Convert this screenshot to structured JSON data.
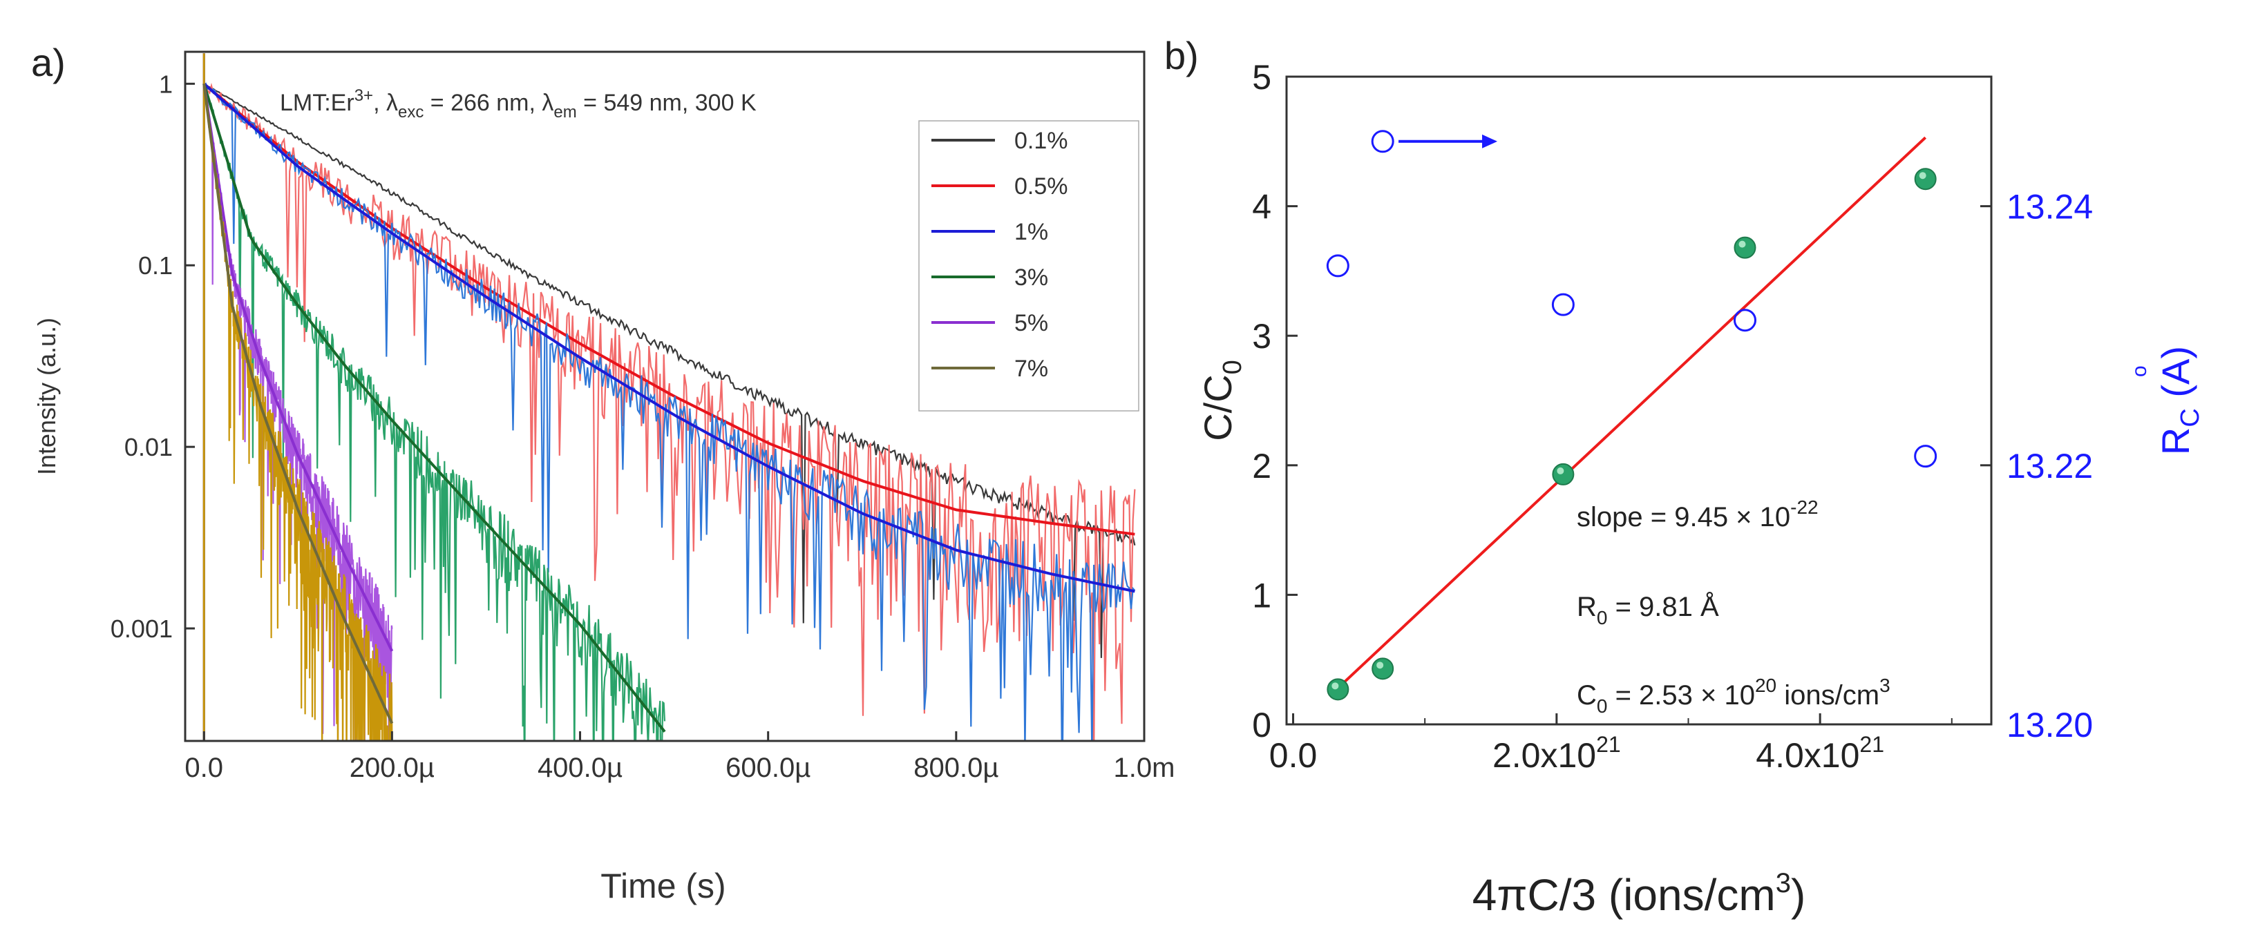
{
  "chart_data": [
    {
      "panel": "a)",
      "type": "line",
      "yscale": "log",
      "title": "LMT:Er3+, λexc = 266 nm, λem = 549 nm, 300 K",
      "title_parts": {
        "host": "LMT:Er",
        "ion_sup": "3+",
        "exc_label": ", λ",
        "exc_sub": "exc",
        "exc_value": " = 266 nm, λ",
        "em_sub": "em",
        "em_value": " = 549 nm, 300 K"
      },
      "xlabel": "Time (s)",
      "ylabel": "Intensity (a.u.)",
      "xlim": [
        -2e-05,
        0.001
      ],
      "ylim": [
        0.00024,
        1.5
      ],
      "x_ticks": [
        {
          "value": 0,
          "label": "0.0"
        },
        {
          "value": 0.0002,
          "label": "200.0µ"
        },
        {
          "value": 0.0004,
          "label": "400.0µ"
        },
        {
          "value": 0.0006,
          "label": "600.0µ"
        },
        {
          "value": 0.0008,
          "label": "800.0µ"
        },
        {
          "value": 0.001,
          "label": "1.0m"
        }
      ],
      "y_ticks": [
        {
          "value": 1,
          "label": "1"
        },
        {
          "value": 0.1,
          "label": "0.1"
        },
        {
          "value": 0.01,
          "label": "0.01"
        },
        {
          "value": 0.001,
          "label": "0.001"
        }
      ],
      "legend_position": "top-right",
      "series": [
        {
          "name": "0.1%",
          "color": "#3a3a3a",
          "fit_color": null,
          "noise": 0.06,
          "start_noise_decays": 0,
          "x": [
            0,
            0.0001,
            0.0002,
            0.0003,
            0.0004,
            0.0005,
            0.0006,
            0.0007,
            0.0008,
            0.0009,
            0.00099
          ],
          "y": [
            1,
            0.5,
            0.25,
            0.12,
            0.062,
            0.033,
            0.018,
            0.0105,
            0.0065,
            0.0042,
            0.003
          ]
        },
        {
          "name": "0.5%",
          "color": "#f26b6b",
          "fit_color": "#e8141c",
          "noise": 0.6,
          "start_noise_decays": 1.0,
          "x": [
            0,
            0.0001,
            0.0002,
            0.0003,
            0.0004,
            0.0005,
            0.0006,
            0.0007,
            0.0008,
            0.0009,
            0.00099
          ],
          "y": [
            1,
            0.37,
            0.16,
            0.075,
            0.037,
            0.019,
            0.0105,
            0.0065,
            0.0045,
            0.0038,
            0.0033
          ]
        },
        {
          "name": "1%",
          "color": "#2f78d8",
          "fit_color": "#1c1cd6",
          "noise": 0.3,
          "start_noise_decays": 1.0,
          "x": [
            0,
            0.0001,
            0.0002,
            0.0003,
            0.0004,
            0.0005,
            0.0006,
            0.0007,
            0.0008,
            0.0009,
            0.00099
          ],
          "y": [
            1,
            0.35,
            0.15,
            0.067,
            0.031,
            0.015,
            0.0078,
            0.0043,
            0.0027,
            0.002,
            0.0016
          ]
        },
        {
          "name": "3%",
          "color": "#2aa36a",
          "fit_color": "#186b2c",
          "noise": 0.35,
          "start_noise_decays": 2.5,
          "x": [
            0,
            5e-05,
            0.0001,
            0.00015,
            0.0002,
            0.0003,
            0.0004,
            0.00049
          ],
          "y": [
            1,
            0.14,
            0.06,
            0.028,
            0.014,
            0.0038,
            0.00105,
            0.00027
          ]
        },
        {
          "name": "5%",
          "color": "#a955df",
          "fit_color": "#8a2fd0",
          "noise": 0.4,
          "start_noise_decays": 3.5,
          "x": [
            0,
            3e-05,
            6e-05,
            0.0001,
            0.00015,
            0.0002
          ],
          "y": [
            1,
            0.09,
            0.03,
            0.009,
            0.0025,
            0.00075
          ]
        },
        {
          "name": "7%",
          "color": "#c8960a",
          "fit_color": "#6f6a3a",
          "noise": 0.55,
          "start_noise_decays": 4.0,
          "x": [
            0,
            3e-05,
            6e-05,
            0.0001,
            0.00015,
            0.0002
          ],
          "y": [
            1,
            0.06,
            0.017,
            0.0045,
            0.0011,
            0.0003
          ]
        }
      ]
    },
    {
      "panel": "b)",
      "type": "scatter",
      "xlabel": "4πC/3 (ions/cm3)",
      "xlabel_parts": {
        "main": "4πC/3 (ions/cm",
        "sup": "3",
        "end": ")"
      },
      "ylabel": "C/C0",
      "ylabel_parts": {
        "main": "C/C",
        "sub": "0"
      },
      "y2label": "Rc (Å)",
      "y2label_parts": {
        "main": "R",
        "sub": "C",
        "end": " (A)",
        "ring": "o"
      },
      "xlim": [
        -5e+19,
        5.3e+21
      ],
      "ylim": [
        0,
        5
      ],
      "y2lim": [
        13.2,
        13.25
      ],
      "x_ticks": [
        {
          "value": 0,
          "label": "0.0",
          "sup": ""
        },
        {
          "value": 2e+21,
          "label": "2.0x10",
          "sup": "21"
        },
        {
          "value": 4e+21,
          "label": "4.0x10",
          "sup": "21"
        }
      ],
      "y_ticks": [
        {
          "value": 0,
          "label": "0"
        },
        {
          "value": 1,
          "label": "1"
        },
        {
          "value": 2,
          "label": "2"
        },
        {
          "value": 3,
          "label": "3"
        },
        {
          "value": 4,
          "label": "4"
        },
        {
          "value": 5,
          "label": "5"
        }
      ],
      "y2_ticks": [
        {
          "value": 13.2,
          "label": "13.20"
        },
        {
          "value": 13.22,
          "label": "13.22"
        },
        {
          "value": 13.24,
          "label": "13.24"
        }
      ],
      "colors": {
        "filled": "#2aa36a",
        "open": "#1a1aff",
        "fit": "#ee1c1c",
        "axis2": "#1a1aff"
      },
      "cc0_points": {
        "x": [
          3.4e+20,
          6.8e+20,
          2.05e+21,
          3.43e+21,
          4.8e+21
        ],
        "y": [
          0.27,
          0.43,
          1.93,
          3.68,
          4.21
        ]
      },
      "rc_points": {
        "x": [
          3.4e+20,
          6.8e+20,
          2.05e+21,
          3.43e+21,
          4.8e+21
        ],
        "y": [
          13.2354,
          13.245,
          13.2324,
          13.2312,
          13.2207
        ]
      },
      "fit_line": {
        "x": [
          3.4e+20,
          4.8e+21
        ],
        "y": [
          0.28,
          4.53
        ]
      },
      "arrow": {
        "x_start": 8e+20,
        "x_end": 1.55e+21,
        "y": 4.5
      },
      "annotations": {
        "slope_main": "slope = 9.45 × 10",
        "slope_sup": "-22",
        "r0_main": "R",
        "r0_sub": "0",
        "r0_value": " = 9.81 Å",
        "c0_main": "C",
        "c0_sub": "0",
        "c0_value": " = 2.53 × 10",
        "c0_sup": "20",
        "c0_unit": " ions/cm",
        "c0_unit_sup": "3"
      }
    }
  ]
}
